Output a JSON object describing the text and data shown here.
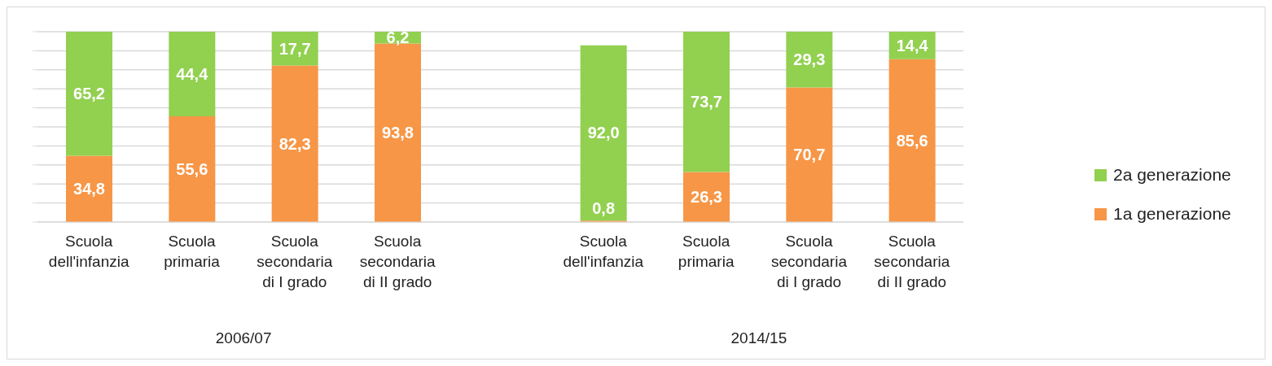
{
  "chart_data": {
    "type": "bar",
    "stacked": true,
    "categories": [
      "Scuola dell'infanzia",
      "Scuola primaria",
      "Scuola secondaria di I grado",
      "Scuola secondaria di II grado",
      null,
      "Scuola dell'infanzia",
      "Scuola primaria",
      "Scuola secondaria di I grado",
      "Scuola secondaria di II grado"
    ],
    "series": [
      {
        "name": "1a generazione",
        "color": "#f79646",
        "values": [
          34.8,
          55.6,
          82.3,
          93.8,
          null,
          0.8,
          26.3,
          70.7,
          85.6
        ],
        "value_labels": [
          "34,8",
          "55,6",
          "82,3",
          "93,8",
          null,
          "0,8",
          "26,3",
          "70,7",
          "85,6"
        ]
      },
      {
        "name": "2a generazione",
        "color": "#92d050",
        "values": [
          65.2,
          44.4,
          17.7,
          6.2,
          null,
          92.0,
          73.7,
          29.3,
          14.4
        ],
        "value_labels": [
          "65,2",
          "44,4",
          "17,7",
          "6,2",
          null,
          "92,0",
          "73,7",
          "29,3",
          "14,4"
        ]
      }
    ],
    "ylim": [
      0,
      100
    ],
    "yticks": [
      {
        "value": 0,
        "label": null
      },
      {
        "value": 10,
        "label": null
      },
      {
        "value": 20,
        "label": null
      },
      {
        "value": 30,
        "label": null
      },
      {
        "value": 40,
        "label": null
      },
      {
        "value": 50,
        "label": null
      },
      {
        "value": 60,
        "label": null
      },
      {
        "value": 70,
        "label": null
      },
      {
        "value": 80,
        "label": null
      },
      {
        "value": 90,
        "label": null
      },
      {
        "value": 100,
        "label": null
      }
    ],
    "tick_labels": "x",
    "grid": "y",
    "legend": "right",
    "annotations": [
      "2006/07",
      "2014/15"
    ]
  }
}
